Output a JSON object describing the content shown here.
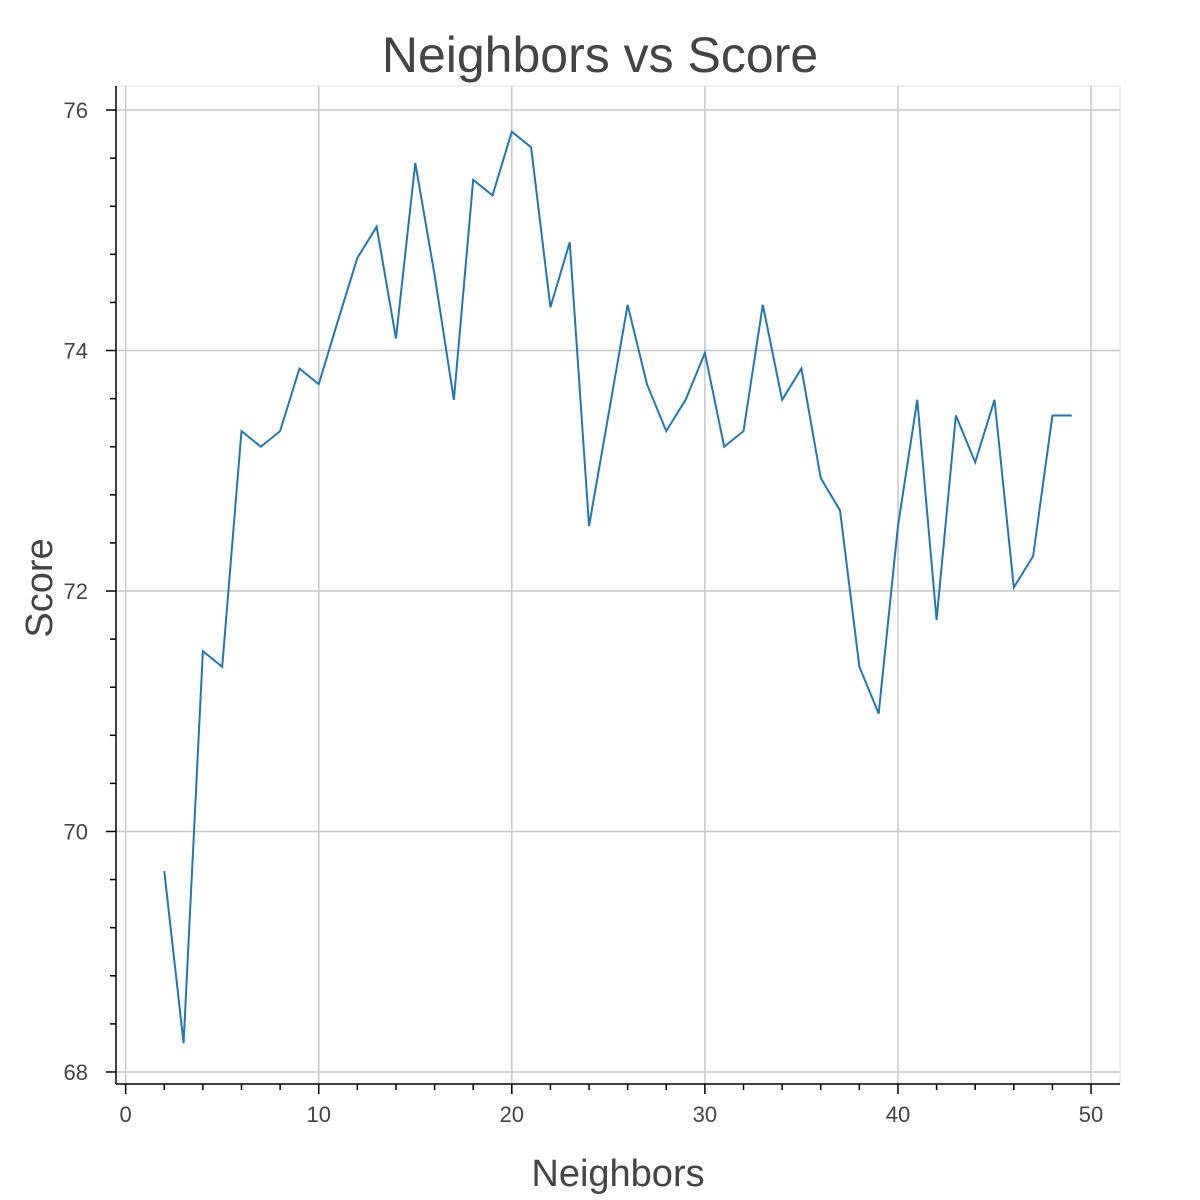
{
  "chart_data": {
    "type": "line",
    "title": "Neighbors vs Score",
    "xlabel": "Neighbors",
    "ylabel": "Score",
    "xlim": [
      -0.5,
      51.5
    ],
    "ylim": [
      67.9,
      76.2
    ],
    "x_ticks": [
      0,
      10,
      20,
      30,
      40,
      50
    ],
    "x_tick_labels": [
      "0",
      "10",
      "20",
      "30",
      "40",
      "50"
    ],
    "y_ticks": [
      68,
      70,
      72,
      74,
      76
    ],
    "y_tick_labels": [
      "68",
      "70",
      "72",
      "74",
      "76"
    ],
    "grid": true,
    "line_color": "#1f77b4",
    "series": [
      {
        "x": [
          2,
          3,
          4,
          5,
          6,
          7,
          8,
          9,
          10,
          11,
          12,
          13,
          14,
          15,
          16,
          17,
          18,
          19,
          20,
          21,
          22,
          23,
          24,
          25,
          26,
          27,
          28,
          29,
          30,
          31,
          32,
          33,
          34,
          35,
          36,
          37,
          38,
          39,
          40,
          41,
          42,
          43,
          44,
          45,
          46,
          47,
          48,
          49
        ],
        "values": [
          69.67,
          68.24,
          71.5,
          71.37,
          73.33,
          73.2,
          73.33,
          73.85,
          73.72,
          74.25,
          74.77,
          75.03,
          74.1,
          75.56,
          74.63,
          73.59,
          75.42,
          75.29,
          75.82,
          75.69,
          74.36,
          74.9,
          72.54,
          73.46,
          74.38,
          73.72,
          73.33,
          73.59,
          73.98,
          73.2,
          73.33,
          74.38,
          73.59,
          73.85,
          72.94,
          72.67,
          71.37,
          70.98,
          72.54,
          73.59,
          71.76,
          73.46,
          73.07,
          73.59,
          72.03,
          72.29,
          73.46,
          73.46
        ]
      }
    ]
  }
}
